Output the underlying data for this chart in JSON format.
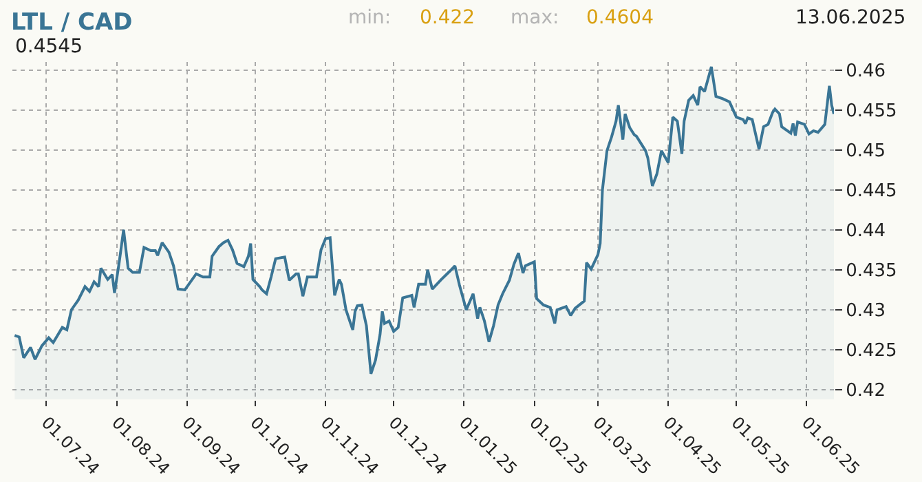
{
  "chart_data": {
    "type": "area",
    "title": "LTL / CAD",
    "annotations": [
      "min:",
      "0.422",
      "max:",
      "0.4604",
      "13.06.2025",
      "0.4545"
    ],
    "x": [
      "2024-06-17",
      "2024-06-19",
      "2024-06-21",
      "2024-06-24",
      "2024-06-26",
      "2024-06-29",
      "2024-07-02",
      "2024-07-04",
      "2024-07-08",
      "2024-07-10",
      "2024-07-12",
      "2024-07-15",
      "2024-07-18",
      "2024-07-20",
      "2024-07-22",
      "2024-07-24",
      "2024-07-25",
      "2024-07-28",
      "2024-07-30",
      "2024-07-31",
      "2024-08-02",
      "2024-08-04",
      "2024-08-06",
      "2024-08-08",
      "2024-08-11",
      "2024-08-13",
      "2024-08-16",
      "2024-08-18",
      "2024-08-19",
      "2024-08-21",
      "2024-08-24",
      "2024-08-26",
      "2024-08-28",
      "2024-08-31",
      "2024-09-05",
      "2024-09-08",
      "2024-09-11",
      "2024-09-12",
      "2024-09-15",
      "2024-09-17",
      "2024-09-19",
      "2024-09-21",
      "2024-09-23",
      "2024-09-26",
      "2024-09-28",
      "2024-09-29",
      "2024-09-30",
      "2024-10-03",
      "2024-10-04",
      "2024-10-06",
      "2024-10-08",
      "2024-10-10",
      "2024-10-14",
      "2024-10-16",
      "2024-10-19",
      "2024-10-20",
      "2024-10-22",
      "2024-10-24",
      "2024-10-28",
      "2024-10-30",
      "2024-11-01",
      "2024-11-03",
      "2024-11-05",
      "2024-11-07",
      "2024-11-08",
      "2024-11-10",
      "2024-11-12",
      "2024-11-13",
      "2024-11-14",
      "2024-11-15",
      "2024-11-17",
      "2024-11-19",
      "2024-11-21",
      "2024-11-23",
      "2024-11-25",
      "2024-11-26",
      "2024-11-27",
      "2024-11-29",
      "2024-12-01",
      "2024-12-03",
      "2024-12-05",
      "2024-12-09",
      "2024-12-10",
      "2024-12-12",
      "2024-12-15",
      "2024-12-16",
      "2024-12-18",
      "2024-12-22",
      "2024-12-26",
      "2024-12-28",
      "2024-12-30",
      "2025-01-02",
      "2025-01-05",
      "2025-01-07",
      "2025-01-08",
      "2025-01-10",
      "2025-01-12",
      "2025-01-14",
      "2025-01-16",
      "2025-01-18",
      "2025-01-21",
      "2025-01-23",
      "2025-01-25",
      "2025-01-27",
      "2025-01-28",
      "2025-02-01",
      "2025-02-02",
      "2025-02-05",
      "2025-02-08",
      "2025-02-10",
      "2025-02-11",
      "2025-02-15",
      "2025-02-17",
      "2025-02-19",
      "2025-02-23",
      "2025-02-24",
      "2025-02-26",
      "2025-03-01",
      "2025-03-02",
      "2025-03-03",
      "2025-03-05",
      "2025-03-07",
      "2025-03-09",
      "2025-03-10",
      "2025-03-12",
      "2025-03-13",
      "2025-03-15",
      "2025-03-17",
      "2025-03-18",
      "2025-03-22",
      "2025-03-23",
      "2025-03-25",
      "2025-03-27",
      "2025-03-29",
      "2025-04-01",
      "2025-04-03",
      "2025-04-05",
      "2025-04-07",
      "2025-04-08",
      "2025-04-10",
      "2025-04-12",
      "2025-04-14",
      "2025-04-15",
      "2025-04-17",
      "2025-04-20",
      "2025-04-22",
      "2025-04-25",
      "2025-04-28",
      "2025-05-01",
      "2025-05-04",
      "2025-05-05",
      "2025-05-06",
      "2025-05-08",
      "2025-05-11",
      "2025-05-13",
      "2025-05-15",
      "2025-05-17",
      "2025-05-18",
      "2025-05-20",
      "2025-05-21",
      "2025-05-25",
      "2025-05-26",
      "2025-05-27",
      "2025-05-28",
      "2025-05-31",
      "2025-06-02",
      "2025-06-04",
      "2025-06-06",
      "2025-06-09",
      "2025-06-11",
      "2025-06-12",
      "2025-06-13"
    ],
    "series": [
      {
        "color": "#3a7595",
        "values": [
          0.4268,
          0.4266,
          0.424,
          0.4253,
          0.4238,
          0.4255,
          0.4265,
          0.4259,
          0.4278,
          0.4275,
          0.43,
          0.4312,
          0.4329,
          0.4323,
          0.4335,
          0.4329,
          0.4352,
          0.4338,
          0.4344,
          0.4321,
          0.4358,
          0.44,
          0.4352,
          0.4347,
          0.4347,
          0.4378,
          0.4374,
          0.4374,
          0.4368,
          0.4384,
          0.4372,
          0.4355,
          0.4326,
          0.4325,
          0.4345,
          0.4341,
          0.4341,
          0.4367,
          0.4379,
          0.4384,
          0.4387,
          0.4375,
          0.4358,
          0.4354,
          0.4367,
          0.4383,
          0.4338,
          0.4329,
          0.4325,
          0.432,
          0.4341,
          0.4364,
          0.4366,
          0.4337,
          0.4345,
          0.4345,
          0.4317,
          0.4341,
          0.4341,
          0.4375,
          0.4389,
          0.439,
          0.4318,
          0.4338,
          0.4332,
          0.43,
          0.4283,
          0.4275,
          0.4298,
          0.4305,
          0.4306,
          0.428,
          0.422,
          0.4237,
          0.4269,
          0.4298,
          0.4283,
          0.4286,
          0.4273,
          0.4278,
          0.4315,
          0.4318,
          0.4303,
          0.4332,
          0.4332,
          0.435,
          0.4326,
          0.4338,
          0.4349,
          0.4355,
          0.4331,
          0.43,
          0.432,
          0.4289,
          0.4303,
          0.4286,
          0.426,
          0.428,
          0.4306,
          0.432,
          0.4337,
          0.4357,
          0.4371,
          0.4346,
          0.4355,
          0.436,
          0.4314,
          0.4306,
          0.4303,
          0.4283,
          0.43,
          0.4304,
          0.4293,
          0.4302,
          0.4311,
          0.4359,
          0.4351,
          0.4369,
          0.4383,
          0.445,
          0.4499,
          0.4516,
          0.4536,
          0.4556,
          0.4513,
          0.4545,
          0.4528,
          0.4519,
          0.4517,
          0.4499,
          0.449,
          0.4455,
          0.447,
          0.4499,
          0.4484,
          0.4541,
          0.4536,
          0.4495,
          0.4536,
          0.4562,
          0.4568,
          0.4556,
          0.4579,
          0.4573,
          0.4604,
          0.4567,
          0.4564,
          0.456,
          0.4541,
          0.4538,
          0.4533,
          0.454,
          0.4538,
          0.4501,
          0.4529,
          0.4532,
          0.4547,
          0.4551,
          0.4545,
          0.4529,
          0.4521,
          0.4533,
          0.4518,
          0.4535,
          0.4532,
          0.452,
          0.4524,
          0.4522,
          0.4532,
          0.458,
          0.4556,
          0.4545
        ]
      }
    ],
    "xlim": [
      "2024-06-16",
      "2025-06-13"
    ],
    "xticks": [
      {
        "value": "2024-07-01",
        "label": "01.07.24"
      },
      {
        "value": "2024-08-01",
        "label": "01.08.24"
      },
      {
        "value": "2024-09-01",
        "label": "01.09.24"
      },
      {
        "value": "2024-10-01",
        "label": "01.10.24"
      },
      {
        "value": "2024-11-01",
        "label": "01.11.24"
      },
      {
        "value": "2024-12-01",
        "label": "01.12.24"
      },
      {
        "value": "2025-01-01",
        "label": "01.01.25"
      },
      {
        "value": "2025-02-01",
        "label": "01.02.25"
      },
      {
        "value": "2025-03-01",
        "label": "01.03.25"
      },
      {
        "value": "2025-04-01",
        "label": "01.04.25"
      },
      {
        "value": "2025-05-01",
        "label": "01.05.25"
      },
      {
        "value": "2025-06-01",
        "label": "01.06.25"
      }
    ],
    "ylim": [
      0.4188,
      0.461
    ],
    "yticks": [
      0.42,
      0.425,
      0.43,
      0.435,
      0.44,
      0.445,
      0.45,
      0.455,
      0.46
    ],
    "grid": true,
    "legend": false,
    "marker": "none",
    "line_style": "solid"
  }
}
